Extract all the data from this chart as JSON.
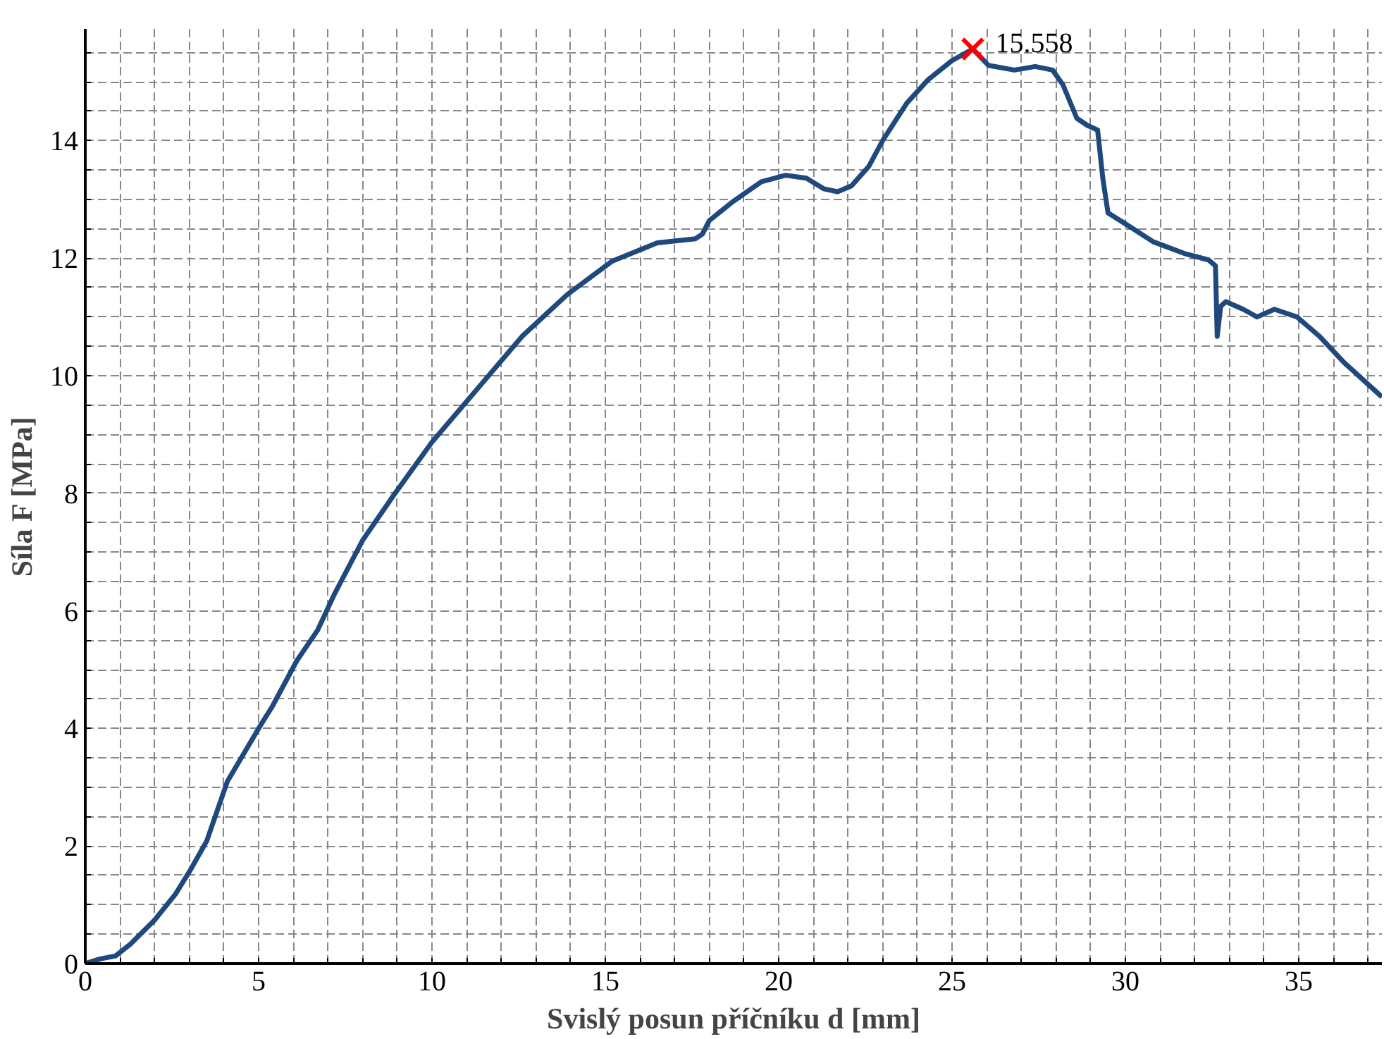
{
  "chart_data": {
    "type": "line",
    "xlabel": "Svislý posun příčníku d [mm]",
    "ylabel": "Síla F [MPa]",
    "xlim": [
      0,
      37.4
    ],
    "ylim": [
      0,
      15.9
    ],
    "xticks": [
      0,
      {
        "value": 1,
        "label": null
      },
      {
        "value": 2,
        "label": null
      },
      {
        "value": 3,
        "label": null
      },
      {
        "value": 4,
        "label": null
      },
      5,
      {
        "value": 6,
        "label": null
      },
      {
        "value": 7,
        "label": null
      },
      {
        "value": 8,
        "label": null
      },
      {
        "value": 9,
        "label": null
      },
      10,
      {
        "value": 11,
        "label": null
      },
      {
        "value": 12,
        "label": null
      },
      {
        "value": 13,
        "label": null
      },
      {
        "value": 14,
        "label": null
      },
      15,
      {
        "value": 16,
        "label": null
      },
      {
        "value": 17,
        "label": null
      },
      {
        "value": 18,
        "label": null
      },
      {
        "value": 19,
        "label": null
      },
      20,
      {
        "value": 21,
        "label": null
      },
      {
        "value": 22,
        "label": null
      },
      {
        "value": 23,
        "label": null
      },
      {
        "value": 24,
        "label": null
      },
      25,
      {
        "value": 26,
        "label": null
      },
      {
        "value": 27,
        "label": null
      },
      {
        "value": 28,
        "label": null
      },
      {
        "value": 29,
        "label": null
      },
      30,
      {
        "value": 31,
        "label": null
      },
      {
        "value": 32,
        "label": null
      },
      {
        "value": 33,
        "label": null
      },
      {
        "value": 34,
        "label": null
      },
      35,
      {
        "value": 36,
        "label": null
      },
      {
        "value": 37,
        "label": null
      }
    ],
    "yticks": [
      0,
      {
        "value": 0.5,
        "label": null
      },
      {
        "value": 1,
        "label": null
      },
      {
        "value": 1.5,
        "label": null
      },
      2,
      {
        "value": 2.5,
        "label": null
      },
      {
        "value": 3,
        "label": null
      },
      {
        "value": 3.5,
        "label": null
      },
      4,
      {
        "value": 4.5,
        "label": null
      },
      {
        "value": 5,
        "label": null
      },
      {
        "value": 5.5,
        "label": null
      },
      6,
      {
        "value": 6.5,
        "label": null
      },
      {
        "value": 7,
        "label": null
      },
      {
        "value": 7.5,
        "label": null
      },
      8,
      {
        "value": 8.5,
        "label": null
      },
      {
        "value": 9,
        "label": null
      },
      {
        "value": 9.5,
        "label": null
      },
      10,
      {
        "value": 10.5,
        "label": null
      },
      {
        "value": 11,
        "label": null
      },
      {
        "value": 11.5,
        "label": null
      },
      12,
      {
        "value": 12.5,
        "label": null
      },
      {
        "value": 13,
        "label": null
      },
      {
        "value": 13.5,
        "label": null
      },
      14,
      {
        "value": 14.5,
        "label": null
      },
      {
        "value": 15,
        "label": null
      },
      {
        "value": 15.5,
        "label": null
      }
    ],
    "grid": true,
    "line_style": "solid",
    "marker": "none",
    "series": [
      {
        "color": "#1f497d",
        "x": [
          0,
          0.43,
          0.87,
          1.3,
          2.0,
          2.6,
          3.0,
          3.5,
          4.1,
          5.0,
          5.4,
          6.1,
          6.7,
          7.2,
          8.0,
          8.9,
          10.0,
          11.3,
          12.6,
          13.9,
          15.2,
          16.5,
          17.6,
          17.8,
          18.0,
          18.7,
          19.5,
          20.2,
          20.8,
          21.3,
          21.7,
          22.1,
          22.6,
          23.0,
          23.7,
          24.3,
          25.0,
          25.6,
          26.05,
          26.8,
          27.4,
          27.9,
          28.2,
          28.6,
          28.9,
          29.2,
          29.35,
          29.5,
          30.2,
          30.8,
          31.7,
          32.4,
          32.6,
          32.65,
          32.75,
          32.9,
          33.4,
          33.8,
          34.3,
          34.95,
          35.6,
          36.3,
          37.4
        ],
        "values": [
          0,
          0.08,
          0.13,
          0.33,
          0.74,
          1.18,
          1.56,
          2.08,
          3.1,
          4.0,
          4.38,
          5.15,
          5.67,
          6.3,
          7.2,
          7.97,
          8.87,
          9.77,
          10.67,
          11.38,
          11.95,
          12.26,
          12.33,
          12.41,
          12.64,
          12.97,
          13.3,
          13.41,
          13.36,
          13.18,
          13.13,
          13.23,
          13.56,
          14.0,
          14.64,
          15.03,
          15.36,
          15.558,
          15.28,
          15.2,
          15.26,
          15.2,
          14.95,
          14.38,
          14.26,
          14.18,
          13.36,
          12.77,
          12.51,
          12.28,
          12.08,
          11.97,
          11.87,
          10.67,
          11.18,
          11.26,
          11.13,
          11.0,
          11.13,
          11.0,
          10.67,
          10.23,
          9.64
        ]
      },
      {
        "type": "scatter",
        "marker": "cross",
        "color": "#ff0000",
        "x": [
          25.6
        ],
        "values": [
          15.558
        ]
      }
    ],
    "annotations": [
      {
        "text": "15.558",
        "x": 25.6,
        "y": 15.558
      }
    ]
  }
}
